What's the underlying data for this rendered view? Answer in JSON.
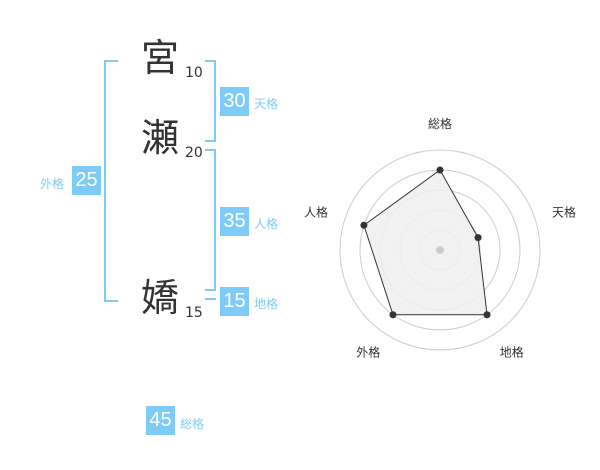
{
  "name": {
    "chars": [
      {
        "char": "宮",
        "strokes": "10"
      },
      {
        "char": "瀬",
        "strokes": "20"
      },
      {
        "char": "嬌",
        "strokes": "15"
      }
    ]
  },
  "kakusu": {
    "tenkaku": {
      "value": "30",
      "label": "天格"
    },
    "jinkaku": {
      "value": "35",
      "label": "人格"
    },
    "chikaku": {
      "value": "15",
      "label": "地格"
    },
    "gaikaku": {
      "value": "25",
      "label": "外格"
    },
    "soukaku": {
      "value": "45",
      "label": "総格"
    }
  },
  "colors": {
    "accent": "#7fcbf8",
    "text": "#333333",
    "grid": "#cccccc",
    "fill": "#eeeeee"
  },
  "chart_data": {
    "type": "radar",
    "categories": [
      "総格",
      "天格",
      "地格",
      "外格",
      "人格"
    ],
    "values": [
      4,
      2,
      4,
      4,
      4
    ],
    "rlim": [
      0,
      5
    ],
    "grid": true
  }
}
